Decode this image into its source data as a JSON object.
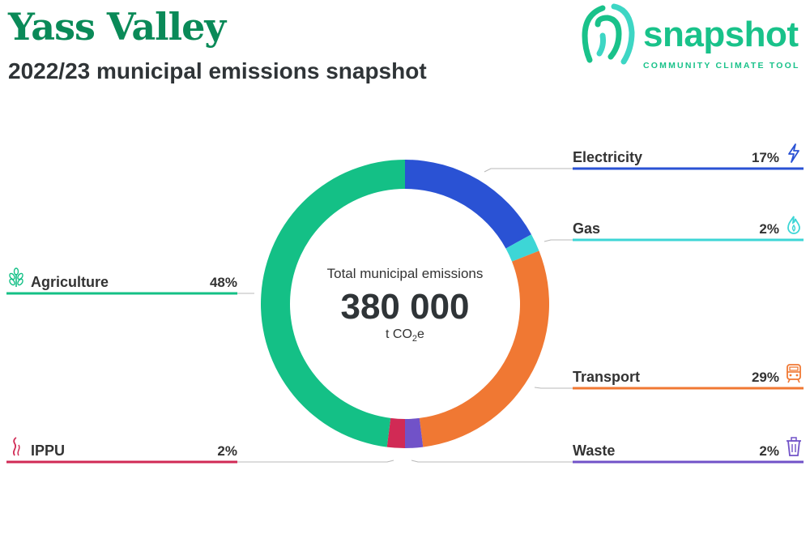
{
  "header": {
    "title": "Yass Valley",
    "subtitle": "2022/23 municipal emissions snapshot"
  },
  "logo": {
    "word": "snapshot",
    "tagline": "COMMUNITY CLIMATE TOOL"
  },
  "center": {
    "label": "Total municipal emissions",
    "value": "380 000",
    "unit_prefix": "t CO",
    "unit_sub": "2",
    "unit_suffix": "e"
  },
  "chart_data": {
    "type": "pie",
    "variant": "donut",
    "total": 380000,
    "unit": "t CO2e",
    "slices": [
      {
        "name": "Electricity",
        "label": "17%",
        "value": 17,
        "color": "#2a52d4",
        "icon": "lightning-icon"
      },
      {
        "name": "Gas",
        "label": "2%",
        "value": 2,
        "color": "#3dd6d6",
        "icon": "flame-icon"
      },
      {
        "name": "Transport",
        "label": "29%",
        "value": 29,
        "color": "#f07833",
        "icon": "train-icon"
      },
      {
        "name": "Waste",
        "label": "2%",
        "value": 2,
        "color": "#7152c8",
        "icon": "bin-icon"
      },
      {
        "name": "IPPU",
        "label": "2%",
        "value": 2,
        "color": "#d12a55",
        "icon": "factory-smoke-icon"
      },
      {
        "name": "Agriculture",
        "label": "48%",
        "value": 48,
        "color": "#14c086",
        "icon": "wheat-icon"
      }
    ]
  }
}
